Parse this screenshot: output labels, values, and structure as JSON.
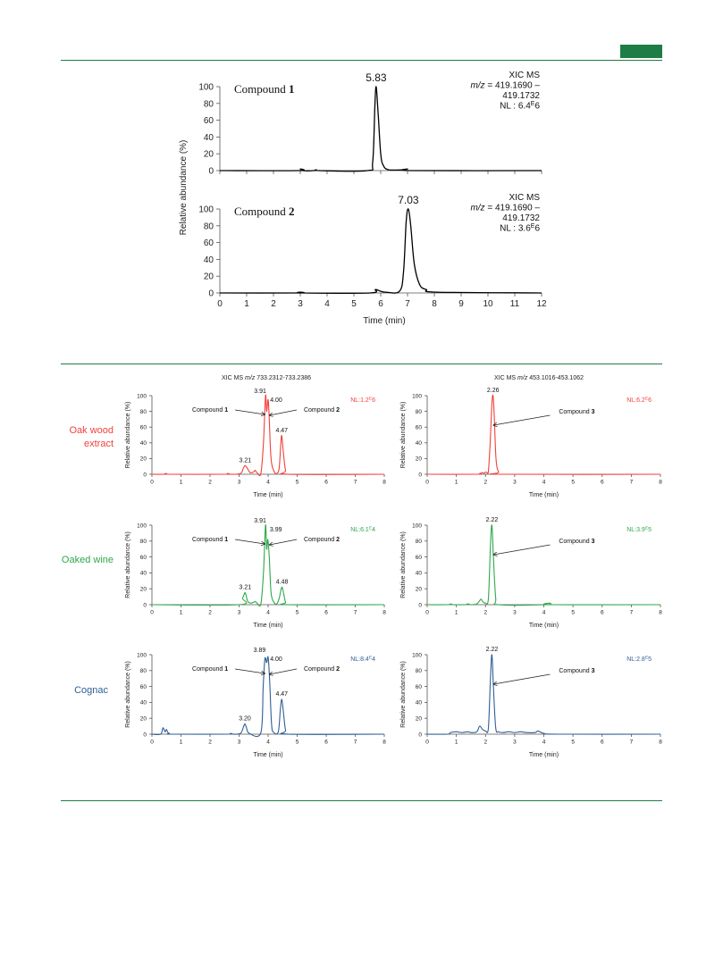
{
  "colors": {
    "rule": "#1e7d46",
    "oak": "#f0413c",
    "wine": "#2ea84a",
    "cognac": "#2f5f96",
    "black": "#000000"
  },
  "fig1": {
    "ylabel": "Relative abundance (%)",
    "xlabel": "Time (min)",
    "x_ticks": [
      "0",
      "1",
      "2",
      "3",
      "4",
      "5",
      "6",
      "7",
      "8",
      "9",
      "10",
      "11",
      "12"
    ],
    "y_ticks": [
      "0",
      "20",
      "40",
      "60",
      "80",
      "100"
    ]
  },
  "fig2": {
    "header_left": "XIC MS m/z 733.2312-733.2386",
    "header_right": "XIC MS m/z 453.1016-453.1062",
    "ylabel": "Relative abundance (%)",
    "xlabel": "Time (min)",
    "x_ticks": [
      "0",
      "1",
      "2",
      "3",
      "4",
      "5",
      "6",
      "7",
      "8"
    ],
    "y_ticks": [
      "0",
      "20",
      "40",
      "60",
      "80",
      "100"
    ],
    "rows": [
      "Oak wood extract",
      "Oaked wine",
      "Cognac"
    ]
  },
  "chart_data": [
    {
      "type": "line",
      "panel": "fig1-top",
      "xlim": [
        0,
        12
      ],
      "ylim": [
        0,
        100
      ],
      "xlabel": "Time (min)",
      "ylabel": "Relative abundance (%)",
      "title": "Compound 1",
      "annotation": [
        "XIC MS",
        "m/z = 419.1690 –",
        "419.1732",
        "NL : 6.4E6"
      ],
      "peak_labels": [
        {
          "x": 5.83,
          "text": "5.83"
        }
      ],
      "series": [
        {
          "x": [
            0,
            2.9,
            3.0,
            3.1,
            3.5,
            3.6,
            3.7,
            5.5,
            5.7,
            5.78,
            5.83,
            5.9,
            6.0,
            6.1,
            6.3,
            6.9,
            7.0,
            7.2,
            12
          ],
          "y": [
            0,
            0,
            2,
            0,
            0,
            1,
            0,
            0,
            10,
            75,
            100,
            70,
            20,
            6,
            1,
            1,
            2,
            0,
            0
          ]
        }
      ]
    },
    {
      "type": "line",
      "panel": "fig1-bottom",
      "xlim": [
        0,
        12
      ],
      "ylim": [
        0,
        100
      ],
      "xlabel": "Time (min)",
      "ylabel": "Relative abundance (%)",
      "title": "Compound 2",
      "annotation": [
        "XIC MS",
        "m/z = 419.1690 –",
        "419.1732",
        "NL : 3.6E6"
      ],
      "peak_labels": [
        {
          "x": 7.03,
          "text": "7.03"
        }
      ],
      "series": [
        {
          "x": [
            0,
            2.9,
            3.0,
            3.1,
            5.6,
            5.8,
            6.0,
            6.2,
            6.7,
            6.85,
            6.95,
            7.03,
            7.12,
            7.25,
            7.45,
            7.7,
            8.1,
            12
          ],
          "y": [
            0,
            0,
            1,
            0,
            0,
            4,
            2,
            1,
            2,
            25,
            85,
            100,
            80,
            35,
            10,
            4,
            1,
            0
          ]
        }
      ]
    },
    {
      "type": "line",
      "panel": "oak-left",
      "xlim": [
        0,
        8
      ],
      "ylim": [
        0,
        100
      ],
      "color": "#f0413c",
      "labels": [
        "Compound 1",
        "Compound 2"
      ],
      "nl": "NL:1.2E6",
      "peak_labels": [
        {
          "x": 3.21,
          "text": "3.21"
        },
        {
          "x": 3.91,
          "text": "3.91"
        },
        {
          "x": 4.0,
          "text": "4.00"
        },
        {
          "x": 4.47,
          "text": "4.47"
        }
      ],
      "series": [
        {
          "x": [
            0,
            0.4,
            0.5,
            0.6,
            2.5,
            2.6,
            2.7,
            3.05,
            3.15,
            3.21,
            3.28,
            3.38,
            3.5,
            3.55,
            3.62,
            3.75,
            3.84,
            3.91,
            3.95,
            4.0,
            4.04,
            4.1,
            4.2,
            4.3,
            4.38,
            4.44,
            4.47,
            4.52,
            4.6,
            4.7,
            8
          ],
          "y": [
            0,
            0,
            1,
            0,
            0,
            1,
            0,
            1,
            8,
            11,
            8,
            2,
            3,
            5,
            2,
            1,
            40,
            100,
            80,
            95,
            70,
            20,
            4,
            1,
            8,
            40,
            49,
            30,
            5,
            0,
            0
          ]
        }
      ]
    },
    {
      "type": "line",
      "panel": "oak-right",
      "xlim": [
        0,
        8
      ],
      "ylim": [
        0,
        100
      ],
      "color": "#f0413c",
      "labels": [
        "Compound 3"
      ],
      "nl": "NL:6.2E6",
      "peak_labels": [
        {
          "x": 2.26,
          "text": "2.26"
        }
      ],
      "series": [
        {
          "x": [
            0,
            1.7,
            1.8,
            1.9,
            1.95,
            2.0,
            2.05,
            2.1,
            2.16,
            2.22,
            2.26,
            2.3,
            2.36,
            2.45,
            2.6,
            8
          ],
          "y": [
            0,
            0,
            1,
            2,
            1,
            3,
            2,
            4,
            40,
            90,
            100,
            75,
            20,
            3,
            0,
            0
          ]
        }
      ]
    },
    {
      "type": "line",
      "panel": "wine-left",
      "xlim": [
        0,
        8
      ],
      "ylim": [
        0,
        100
      ],
      "color": "#2ea84a",
      "labels": [
        "Compound 1",
        "Compound 2"
      ],
      "nl": "NL:6.1E4",
      "peak_labels": [
        {
          "x": 3.21,
          "text": "3.21"
        },
        {
          "x": 3.91,
          "text": "3.91"
        },
        {
          "x": 3.99,
          "text": "3.99"
        },
        {
          "x": 4.48,
          "text": "4.48"
        }
      ],
      "series": [
        {
          "x": [
            0,
            3.0,
            3.12,
            3.2,
            3.24,
            3.3,
            3.4,
            3.5,
            3.56,
            3.62,
            3.75,
            3.84,
            3.91,
            3.95,
            3.99,
            4.04,
            4.1,
            4.2,
            4.3,
            4.38,
            4.44,
            4.48,
            4.53,
            4.6,
            4.7,
            8
          ],
          "y": [
            0,
            0,
            8,
            15,
            12,
            4,
            2,
            3,
            4,
            2,
            1,
            40,
            100,
            70,
            82,
            60,
            15,
            3,
            1,
            8,
            18,
            22,
            15,
            3,
            0,
            0
          ]
        }
      ]
    },
    {
      "type": "line",
      "panel": "wine-right",
      "xlim": [
        0,
        8
      ],
      "ylim": [
        0,
        100
      ],
      "color": "#2ea84a",
      "labels": [
        "Compound 3"
      ],
      "nl": "NL:3.9E5",
      "peak_labels": [
        {
          "x": 2.22,
          "text": "2.22"
        }
      ],
      "series": [
        {
          "x": [
            0,
            0.7,
            0.8,
            0.9,
            1.3,
            1.4,
            1.5,
            1.7,
            1.8,
            1.85,
            1.9,
            2.0,
            2.1,
            2.17,
            2.22,
            2.27,
            2.35,
            2.45,
            4.1,
            4.2,
            4.3,
            8
          ],
          "y": [
            0,
            0,
            1,
            0,
            0,
            1,
            0,
            1,
            5,
            7,
            4,
            2,
            8,
            75,
            100,
            60,
            8,
            0,
            0,
            2,
            0,
            0
          ]
        }
      ]
    },
    {
      "type": "line",
      "panel": "cognac-left",
      "xlim": [
        0,
        8
      ],
      "ylim": [
        0,
        100
      ],
      "color": "#2f5f96",
      "labels": [
        "Compound 1",
        "Compound 2"
      ],
      "nl": "NL:8.4E4",
      "peak_labels": [
        {
          "x": 3.2,
          "text": "3.20"
        },
        {
          "x": 3.89,
          "text": "3.89"
        },
        {
          "x": 4.0,
          "text": "4.00"
        },
        {
          "x": 4.47,
          "text": "4.47"
        }
      ],
      "series": [
        {
          "x": [
            0,
            0.3,
            0.38,
            0.45,
            0.5,
            0.55,
            0.6,
            0.7,
            2.6,
            2.7,
            2.8,
            3.05,
            3.15,
            3.2,
            3.25,
            3.35,
            3.75,
            3.83,
            3.89,
            3.95,
            4.0,
            4.05,
            4.12,
            4.2,
            4.35,
            4.42,
            4.47,
            4.52,
            4.6,
            4.7,
            8
          ],
          "y": [
            0,
            0,
            8,
            3,
            6,
            2,
            1,
            0,
            0,
            1,
            0,
            1,
            9,
            13,
            9,
            1,
            2,
            60,
            95,
            90,
            97,
            70,
            12,
            2,
            3,
            30,
            44,
            30,
            5,
            0,
            0
          ]
        }
      ]
    },
    {
      "type": "line",
      "panel": "cognac-right",
      "xlim": [
        0,
        8
      ],
      "ylim": [
        0,
        100
      ],
      "color": "#2f5f96",
      "labels": [
        "Compound 3"
      ],
      "nl": "NL:2.8E5",
      "peak_labels": [
        {
          "x": 2.22,
          "text": "2.22"
        }
      ],
      "series": [
        {
          "x": [
            0,
            0.7,
            0.8,
            1.0,
            1.2,
            1.4,
            1.5,
            1.7,
            1.8,
            1.9,
            2.0,
            2.1,
            2.17,
            2.22,
            2.27,
            2.35,
            2.45,
            2.6,
            2.8,
            3.0,
            3.2,
            3.4,
            3.7,
            3.8,
            4.0,
            4.5,
            8
          ],
          "y": [
            0,
            0,
            2,
            3,
            2,
            3,
            2,
            3,
            10,
            6,
            4,
            8,
            70,
            100,
            60,
            8,
            3,
            2,
            3,
            2,
            3,
            2,
            2,
            4,
            1,
            0,
            0
          ]
        }
      ]
    }
  ]
}
